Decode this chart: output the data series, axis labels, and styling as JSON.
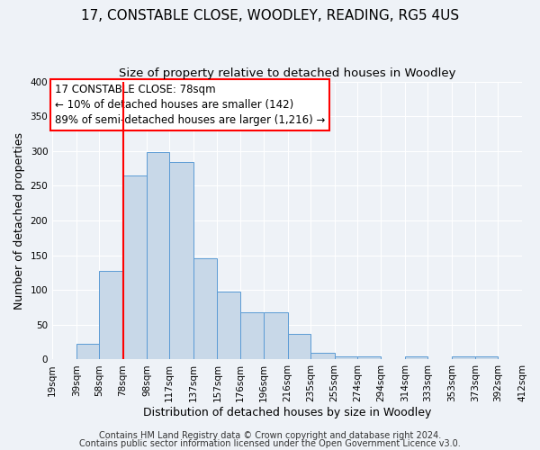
{
  "title": "17, CONSTABLE CLOSE, WOODLEY, READING, RG5 4US",
  "subtitle": "Size of property relative to detached houses in Woodley",
  "xlabel": "Distribution of detached houses by size in Woodley",
  "ylabel": "Number of detached properties",
  "bin_edges": [
    19,
    39,
    58,
    78,
    98,
    117,
    137,
    157,
    176,
    196,
    216,
    235,
    255,
    274,
    294,
    314,
    333,
    353,
    373,
    392,
    412
  ],
  "bin_labels": [
    "19sqm",
    "39sqm",
    "58sqm",
    "78sqm",
    "98sqm",
    "117sqm",
    "137sqm",
    "157sqm",
    "176sqm",
    "196sqm",
    "216sqm",
    "235sqm",
    "255sqm",
    "274sqm",
    "294sqm",
    "314sqm",
    "333sqm",
    "353sqm",
    "373sqm",
    "392sqm",
    "412sqm"
  ],
  "counts": [
    0,
    22,
    128,
    265,
    298,
    284,
    146,
    98,
    68,
    68,
    37,
    10,
    5,
    4,
    0,
    4,
    0,
    5,
    5,
    0
  ],
  "bar_color": "#c8d8e8",
  "bar_edge_color": "#5b9bd5",
  "vline_x": 78,
  "vline_color": "red",
  "annotation_line1": "17 CONSTABLE CLOSE: 78sqm",
  "annotation_line2": "← 10% of detached houses are smaller (142)",
  "annotation_line3": "89% of semi-detached houses are larger (1,216) →",
  "ylim": [
    0,
    400
  ],
  "yticks": [
    0,
    50,
    100,
    150,
    200,
    250,
    300,
    350,
    400
  ],
  "footnote1": "Contains HM Land Registry data © Crown copyright and database right 2024.",
  "footnote2": "Contains public sector information licensed under the Open Government Licence v3.0.",
  "background_color": "#eef2f7",
  "grid_color": "#ffffff",
  "title_fontsize": 11,
  "subtitle_fontsize": 9.5,
  "axis_label_fontsize": 9,
  "tick_fontsize": 7.5,
  "annotation_fontsize": 8.5,
  "footnote_fontsize": 7
}
